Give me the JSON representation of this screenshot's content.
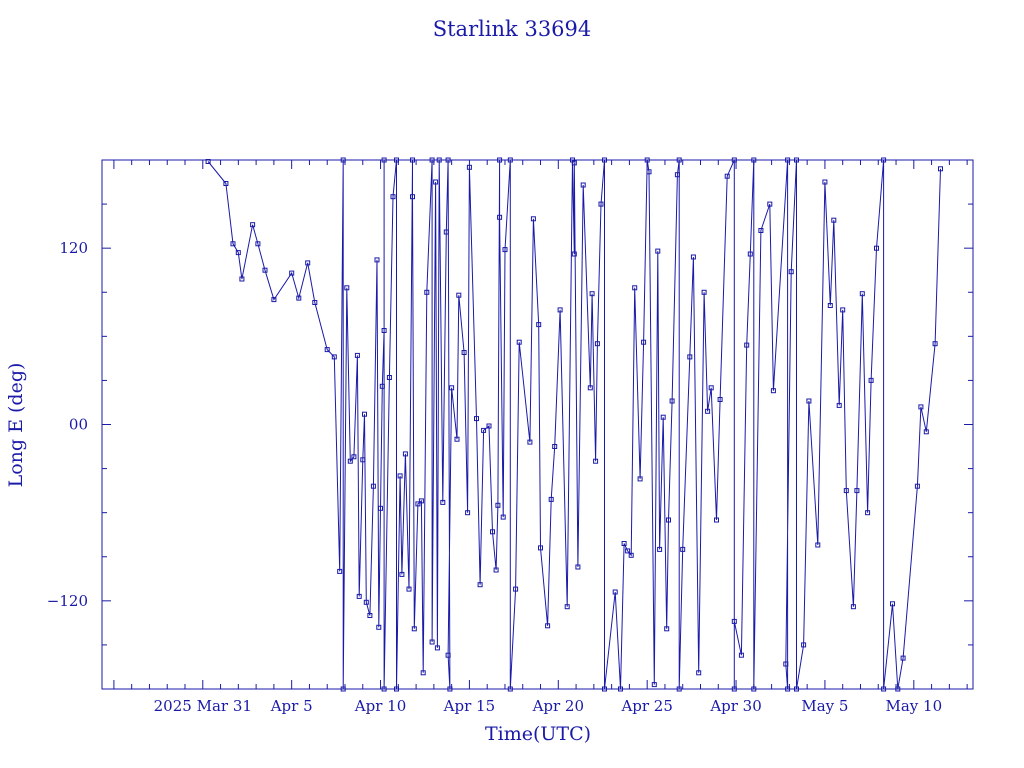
{
  "chart_data": {
    "type": "line",
    "title": "Starlink 33694",
    "xlabel": "Time(UTC)",
    "ylabel": "Long E (deg)",
    "x_unit": "day of 2025",
    "xlim": [
      84.33,
      133.33
    ],
    "ylim": [
      -180,
      180
    ],
    "x_ticks": [
      {
        "x": 90,
        "label": "2025 Mar 31"
      },
      {
        "x": 95,
        "label": "Apr  5"
      },
      {
        "x": 100,
        "label": "Apr 10"
      },
      {
        "x": 105,
        "label": "Apr 15"
      },
      {
        "x": 110,
        "label": "Apr 20"
      },
      {
        "x": 115,
        "label": "Apr 25"
      },
      {
        "x": 120,
        "label": "Apr 30"
      },
      {
        "x": 125,
        "label": "May  5"
      },
      {
        "x": 130,
        "label": "May 10"
      }
    ],
    "y_ticks": [
      {
        "y": 120,
        "label": "120"
      },
      {
        "y": 0,
        "label": "00"
      },
      {
        "y": -120,
        "label": "−120"
      }
    ],
    "grid": false,
    "color": "#1a1aa8",
    "points": [
      [
        90.3,
        179
      ],
      [
        91.3,
        164
      ],
      [
        91.7,
        123
      ],
      [
        92.0,
        117
      ],
      [
        92.2,
        99
      ],
      [
        92.8,
        136
      ],
      [
        93.1,
        123
      ],
      [
        93.5,
        105
      ],
      [
        94.0,
        85
      ],
      [
        95.0,
        103
      ],
      [
        95.4,
        86
      ],
      [
        95.9,
        110
      ],
      [
        96.3,
        83
      ],
      [
        97.0,
        51
      ],
      [
        97.4,
        46
      ],
      [
        97.7,
        -100
      ],
      [
        97.9,
        180
      ],
      [
        97.9,
        -180
      ],
      [
        98.1,
        93
      ],
      [
        98.3,
        -25
      ],
      [
        98.5,
        -22
      ],
      [
        98.7,
        47
      ],
      [
        98.8,
        -117
      ],
      [
        99.0,
        -24
      ],
      [
        99.1,
        7
      ],
      [
        99.2,
        -121
      ],
      [
        99.4,
        -130
      ],
      [
        99.6,
        -42
      ],
      [
        99.8,
        112
      ],
      [
        99.9,
        -138
      ],
      [
        100.0,
        -57
      ],
      [
        100.1,
        26
      ],
      [
        100.2,
        64
      ],
      [
        100.2,
        180
      ],
      [
        100.2,
        -180
      ],
      [
        100.5,
        32
      ],
      [
        100.7,
        155
      ],
      [
        100.9,
        180
      ],
      [
        100.9,
        -180
      ],
      [
        101.1,
        -35
      ],
      [
        101.2,
        -102
      ],
      [
        101.4,
        -20
      ],
      [
        101.6,
        -112
      ],
      [
        101.8,
        180
      ],
      [
        101.8,
        155
      ],
      [
        101.9,
        -139
      ],
      [
        102.1,
        -54
      ],
      [
        102.3,
        -52
      ],
      [
        102.4,
        -169
      ],
      [
        102.6,
        90
      ],
      [
        102.9,
        180
      ],
      [
        102.9,
        -148
      ],
      [
        103.1,
        165
      ],
      [
        103.2,
        -152
      ],
      [
        103.3,
        180
      ],
      [
        103.5,
        -53
      ],
      [
        103.7,
        131
      ],
      [
        103.8,
        180
      ],
      [
        103.9,
        -180
      ],
      [
        103.8,
        -157
      ],
      [
        104.0,
        25
      ],
      [
        104.3,
        -10
      ],
      [
        104.4,
        88
      ],
      [
        104.7,
        49
      ],
      [
        104.9,
        -60
      ],
      [
        105.0,
        175
      ],
      [
        105.4,
        4
      ],
      [
        105.6,
        -109
      ],
      [
        105.8,
        -4
      ],
      [
        106.1,
        -1
      ],
      [
        106.3,
        -73
      ],
      [
        106.5,
        -99
      ],
      [
        106.6,
        -55
      ],
      [
        106.7,
        180
      ],
      [
        106.7,
        141
      ],
      [
        106.9,
        -63
      ],
      [
        107.0,
        119
      ],
      [
        107.3,
        180
      ],
      [
        107.3,
        -180
      ],
      [
        107.6,
        -112
      ],
      [
        107.8,
        56
      ],
      [
        108.4,
        -12
      ],
      [
        108.6,
        140
      ],
      [
        108.9,
        68
      ],
      [
        109.0,
        -84
      ],
      [
        109.4,
        -137
      ],
      [
        109.6,
        -51
      ],
      [
        109.8,
        -15
      ],
      [
        110.1,
        78
      ],
      [
        110.5,
        -124
      ],
      [
        110.8,
        180
      ],
      [
        110.9,
        116
      ],
      [
        110.9,
        178
      ],
      [
        111.1,
        -97
      ],
      [
        111.4,
        163
      ],
      [
        111.8,
        25
      ],
      [
        111.9,
        89
      ],
      [
        112.1,
        -25
      ],
      [
        112.2,
        55
      ],
      [
        112.4,
        150
      ],
      [
        112.6,
        180
      ],
      [
        112.6,
        -180
      ],
      [
        113.2,
        -114
      ],
      [
        113.5,
        -180
      ],
      [
        113.7,
        -81
      ],
      [
        113.9,
        -86
      ],
      [
        114.1,
        -89
      ],
      [
        114.3,
        93
      ],
      [
        114.6,
        -37
      ],
      [
        114.8,
        56
      ],
      [
        115.0,
        180
      ],
      [
        115.1,
        172
      ],
      [
        115.4,
        -177
      ],
      [
        115.6,
        118
      ],
      [
        115.7,
        -85
      ],
      [
        115.9,
        5
      ],
      [
        116.1,
        -139
      ],
      [
        116.2,
        -65
      ],
      [
        116.4,
        16
      ],
      [
        116.7,
        170
      ],
      [
        116.8,
        180
      ],
      [
        116.8,
        -180
      ],
      [
        117.0,
        -85
      ],
      [
        117.4,
        46
      ],
      [
        117.6,
        114
      ],
      [
        117.9,
        -169
      ],
      [
        118.2,
        90
      ],
      [
        118.4,
        9
      ],
      [
        118.6,
        25
      ],
      [
        118.9,
        -65
      ],
      [
        119.1,
        17
      ],
      [
        119.5,
        169
      ],
      [
        119.9,
        180
      ],
      [
        119.9,
        -180
      ],
      [
        119.9,
        -134
      ],
      [
        120.3,
        -157
      ],
      [
        120.6,
        54
      ],
      [
        120.8,
        116
      ],
      [
        121.0,
        180
      ],
      [
        121.0,
        -180
      ],
      [
        121.4,
        132
      ],
      [
        121.9,
        150
      ],
      [
        122.1,
        23
      ],
      [
        122.9,
        180
      ],
      [
        122.9,
        -180
      ],
      [
        122.8,
        -163
      ],
      [
        123.1,
        104
      ],
      [
        123.4,
        180
      ],
      [
        123.4,
        -180
      ],
      [
        123.8,
        -150
      ],
      [
        124.1,
        16
      ],
      [
        124.6,
        -82
      ],
      [
        125.0,
        165
      ],
      [
        125.3,
        81
      ],
      [
        125.5,
        139
      ],
      [
        125.8,
        13
      ],
      [
        126.0,
        78
      ],
      [
        126.2,
        -45
      ],
      [
        126.6,
        -124
      ],
      [
        126.8,
        -45
      ],
      [
        127.1,
        89
      ],
      [
        127.4,
        -60
      ],
      [
        127.6,
        30
      ],
      [
        127.9,
        120
      ],
      [
        128.3,
        180
      ],
      [
        128.3,
        -180
      ],
      [
        128.8,
        -122
      ],
      [
        129.1,
        -180
      ],
      [
        129.4,
        -159
      ],
      [
        130.2,
        -42
      ],
      [
        130.4,
        12
      ],
      [
        130.7,
        -5
      ],
      [
        131.2,
        55
      ],
      [
        131.5,
        174
      ]
    ]
  }
}
